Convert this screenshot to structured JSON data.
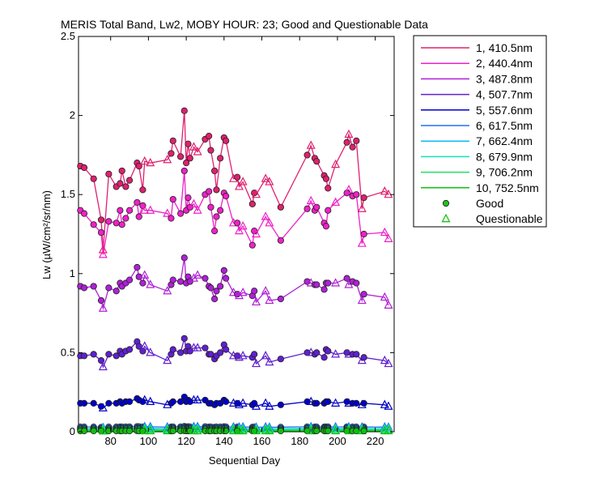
{
  "chart_data": {
    "type": "line",
    "title": "MERIS Total Band,  Lw2, MOBY HOUR: 23;  Good and Questionable Data",
    "xlabel": "Sequential Day",
    "ylabel": "Lw (µW/cm²/sr/nm)",
    "xlim": [
      63,
      230
    ],
    "ylim": [
      0,
      2.5
    ],
    "xticks": [
      80,
      100,
      120,
      140,
      160,
      180,
      200,
      220
    ],
    "yticks": [
      0,
      0.5,
      1,
      1.5,
      2,
      2.5
    ],
    "ytick_labels": [
      "0",
      "0.5",
      "1",
      "1.5",
      "2",
      "2.5"
    ],
    "grid": false,
    "legend_position": "outside-right",
    "x": [
      64,
      66,
      71,
      75,
      76,
      79,
      83,
      85,
      86,
      88,
      90,
      94,
      95,
      97,
      98,
      101,
      110,
      112,
      113,
      117,
      119,
      120,
      121,
      122,
      124,
      126,
      130,
      132,
      133,
      135,
      136,
      138,
      140,
      141,
      145,
      147,
      148,
      150,
      155,
      156,
      157,
      162,
      164,
      170,
      184,
      186,
      188,
      189,
      193,
      194,
      195,
      199,
      205,
      206,
      208,
      210,
      213,
      214,
      225,
      227
    ],
    "series": [
      {
        "name": "1, 410.5nm",
        "color": "#e0206e",
        "values": [
          1.68,
          1.67,
          1.6,
          1.34,
          1.15,
          1.63,
          1.55,
          1.57,
          1.65,
          1.55,
          1.59,
          1.7,
          1.68,
          1.53,
          1.71,
          1.7,
          1.72,
          1.76,
          1.84,
          1.74,
          2.03,
          1.7,
          1.82,
          1.73,
          1.8,
          1.77,
          1.85,
          1.87,
          1.78,
          1.65,
          1.53,
          1.73,
          1.86,
          1.84,
          1.6,
          1.61,
          1.55,
          1.58,
          1.44,
          1.51,
          1.5,
          1.6,
          1.58,
          1.42,
          1.75,
          1.81,
          1.73,
          1.71,
          1.62,
          1.6,
          1.54,
          1.69,
          1.83,
          1.88,
          1.8,
          1.84,
          1.41,
          1.48,
          1.52,
          1.5
        ]
      },
      {
        "name": "2, 440.4nm",
        "color": "#f020c8",
        "values": [
          1.4,
          1.38,
          1.31,
          1.26,
          1.12,
          1.33,
          1.32,
          1.4,
          1.31,
          1.35,
          1.4,
          1.45,
          1.36,
          1.43,
          1.4,
          1.4,
          1.38,
          1.35,
          1.47,
          1.38,
          1.65,
          1.4,
          1.48,
          1.42,
          1.44,
          1.4,
          1.5,
          1.52,
          1.42,
          1.27,
          1.36,
          1.4,
          1.51,
          1.49,
          1.32,
          1.32,
          1.27,
          1.3,
          1.18,
          1.27,
          1.25,
          1.36,
          1.32,
          1.21,
          1.41,
          1.46,
          1.4,
          1.42,
          1.32,
          1.3,
          1.4,
          1.45,
          1.51,
          1.53,
          1.49,
          1.5,
          1.19,
          1.25,
          1.26,
          1.22
        ]
      },
      {
        "name": "3, 487.8nm",
        "color": "#b020d8",
        "values": [
          0.92,
          0.91,
          0.92,
          0.83,
          0.78,
          0.91,
          0.89,
          0.94,
          0.92,
          0.94,
          0.96,
          1.04,
          0.98,
          0.94,
          0.99,
          0.93,
          0.89,
          0.93,
          0.96,
          0.95,
          1.1,
          0.94,
          0.98,
          0.95,
          0.97,
          0.99,
          0.97,
          0.92,
          0.91,
          0.84,
          0.89,
          0.92,
          1.02,
          0.97,
          0.88,
          0.87,
          0.86,
          0.88,
          0.86,
          0.89,
          0.82,
          0.89,
          0.83,
          0.84,
          0.95,
          0.94,
          0.93,
          0.93,
          0.9,
          0.94,
          0.94,
          0.94,
          0.97,
          0.93,
          0.95,
          0.94,
          0.83,
          0.87,
          0.85,
          0.8
        ]
      },
      {
        "name": "4, 507.7nm",
        "color": "#6020d0",
        "values": [
          0.48,
          0.48,
          0.49,
          0.45,
          0.41,
          0.49,
          0.48,
          0.51,
          0.49,
          0.51,
          0.52,
          0.57,
          0.54,
          0.51,
          0.54,
          0.5,
          0.45,
          0.49,
          0.52,
          0.5,
          0.59,
          0.51,
          0.54,
          0.51,
          0.53,
          0.53,
          0.53,
          0.49,
          0.49,
          0.46,
          0.48,
          0.5,
          0.55,
          0.52,
          0.48,
          0.48,
          0.47,
          0.48,
          0.47,
          0.49,
          0.43,
          0.48,
          0.44,
          0.46,
          0.5,
          0.5,
          0.49,
          0.5,
          0.47,
          0.52,
          0.51,
          0.49,
          0.5,
          0.49,
          0.49,
          0.49,
          0.45,
          0.47,
          0.45,
          0.43
        ]
      },
      {
        "name": "5, 557.6nm",
        "color": "#0000c8",
        "values": [
          0.18,
          0.18,
          0.18,
          0.16,
          0.15,
          0.18,
          0.18,
          0.19,
          0.18,
          0.19,
          0.19,
          0.21,
          0.2,
          0.19,
          0.2,
          0.19,
          0.17,
          0.18,
          0.19,
          0.19,
          0.22,
          0.19,
          0.2,
          0.19,
          0.2,
          0.2,
          0.2,
          0.18,
          0.18,
          0.17,
          0.18,
          0.18,
          0.2,
          0.19,
          0.18,
          0.18,
          0.17,
          0.18,
          0.17,
          0.18,
          0.16,
          0.18,
          0.16,
          0.17,
          0.19,
          0.19,
          0.18,
          0.18,
          0.18,
          0.19,
          0.19,
          0.18,
          0.19,
          0.18,
          0.18,
          0.18,
          0.17,
          0.18,
          0.17,
          0.16
        ]
      },
      {
        "name": "6, 617.5nm",
        "color": "#2070f0",
        "values": [
          0.03,
          0.03,
          0.03,
          0.028,
          0.026,
          0.03,
          0.03,
          0.031,
          0.03,
          0.031,
          0.031,
          0.033,
          0.032,
          0.031,
          0.032,
          0.031,
          0.029,
          0.03,
          0.031,
          0.031,
          0.034,
          0.031,
          0.032,
          0.031,
          0.032,
          0.032,
          0.032,
          0.03,
          0.03,
          0.029,
          0.03,
          0.03,
          0.032,
          0.031,
          0.03,
          0.03,
          0.029,
          0.03,
          0.029,
          0.03,
          0.028,
          0.03,
          0.028,
          0.029,
          0.031,
          0.031,
          0.03,
          0.03,
          0.03,
          0.031,
          0.031,
          0.03,
          0.031,
          0.03,
          0.03,
          0.03,
          0.029,
          0.03,
          0.029,
          0.028
        ]
      },
      {
        "name": "7, 662.4nm",
        "color": "#10b8f0",
        "values": [
          0.02,
          0.02,
          0.02,
          0.019,
          0.018,
          0.02,
          0.02,
          0.021,
          0.02,
          0.021,
          0.021,
          0.022,
          0.021,
          0.021,
          0.021,
          0.021,
          0.019,
          0.02,
          0.021,
          0.02,
          0.023,
          0.021,
          0.021,
          0.021,
          0.021,
          0.021,
          0.021,
          0.02,
          0.02,
          0.019,
          0.02,
          0.02,
          0.021,
          0.021,
          0.02,
          0.02,
          0.019,
          0.02,
          0.019,
          0.02,
          0.019,
          0.02,
          0.019,
          0.019,
          0.021,
          0.021,
          0.02,
          0.02,
          0.02,
          0.021,
          0.021,
          0.02,
          0.021,
          0.02,
          0.02,
          0.02,
          0.019,
          0.02,
          0.019,
          0.019
        ]
      },
      {
        "name": "8, 679.9nm",
        "color": "#10e0c0",
        "values": [
          0.018,
          0.018,
          0.018,
          0.017,
          0.016,
          0.018,
          0.018,
          0.019,
          0.018,
          0.019,
          0.019,
          0.02,
          0.019,
          0.019,
          0.019,
          0.019,
          0.017,
          0.018,
          0.019,
          0.018,
          0.021,
          0.019,
          0.019,
          0.019,
          0.019,
          0.019,
          0.019,
          0.018,
          0.018,
          0.017,
          0.018,
          0.018,
          0.019,
          0.019,
          0.018,
          0.018,
          0.017,
          0.018,
          0.017,
          0.018,
          0.017,
          0.018,
          0.017,
          0.017,
          0.019,
          0.019,
          0.018,
          0.018,
          0.018,
          0.019,
          0.019,
          0.018,
          0.019,
          0.018,
          0.018,
          0.018,
          0.017,
          0.018,
          0.017,
          0.017
        ]
      },
      {
        "name": "9, 706.2nm",
        "color": "#20e060",
        "values": [
          0.012,
          0.012,
          0.012,
          0.011,
          0.01,
          0.012,
          0.012,
          0.012,
          0.012,
          0.012,
          0.012,
          0.013,
          0.013,
          0.012,
          0.013,
          0.012,
          0.011,
          0.012,
          0.012,
          0.012,
          0.014,
          0.012,
          0.013,
          0.012,
          0.013,
          0.013,
          0.013,
          0.012,
          0.012,
          0.011,
          0.012,
          0.012,
          0.013,
          0.012,
          0.012,
          0.012,
          0.011,
          0.012,
          0.011,
          0.012,
          0.011,
          0.012,
          0.011,
          0.011,
          0.012,
          0.012,
          0.012,
          0.012,
          0.012,
          0.012,
          0.012,
          0.012,
          0.012,
          0.012,
          0.012,
          0.012,
          0.011,
          0.012,
          0.011,
          0.011
        ]
      },
      {
        "name": "10, 752.5nm",
        "color": "#10c010",
        "values": [
          0.005,
          0.005,
          0.005,
          0.005,
          0.004,
          0.005,
          0.005,
          0.005,
          0.005,
          0.005,
          0.005,
          0.006,
          0.005,
          0.005,
          0.005,
          0.005,
          0.005,
          0.005,
          0.005,
          0.005,
          0.006,
          0.005,
          0.005,
          0.005,
          0.005,
          0.005,
          0.005,
          0.005,
          0.005,
          0.005,
          0.005,
          0.005,
          0.005,
          0.005,
          0.005,
          0.005,
          0.005,
          0.005,
          0.005,
          0.005,
          0.005,
          0.005,
          0.005,
          0.005,
          0.005,
          0.005,
          0.005,
          0.005,
          0.005,
          0.005,
          0.005,
          0.005,
          0.005,
          0.005,
          0.005,
          0.005,
          0.005,
          0.005,
          0.005,
          0.005
        ]
      }
    ],
    "quality": [
      "G",
      "G",
      "G",
      "G",
      "Q",
      "G",
      "G",
      "G",
      "G",
      "G",
      "G",
      "G",
      "G",
      "G",
      "Q",
      "Q",
      "Q",
      "G",
      "G",
      "G",
      "G",
      "G",
      "G",
      "G",
      "Q",
      "Q",
      "G",
      "G",
      "G",
      "G",
      "G",
      "G",
      "G",
      "G",
      "Q",
      "G",
      "Q",
      "Q",
      "G",
      "G",
      "Q",
      "Q",
      "Q",
      "G",
      "G",
      "Q",
      "G",
      "G",
      "G",
      "G",
      "G",
      "Q",
      "G",
      "Q",
      "G",
      "G",
      "Q",
      "G",
      "Q",
      "Q"
    ],
    "legend_markers": [
      {
        "label": "Good",
        "marker": "circle",
        "color": "#20c020"
      },
      {
        "label": "Questionable",
        "marker": "triangle",
        "color": "#20c020"
      }
    ]
  }
}
